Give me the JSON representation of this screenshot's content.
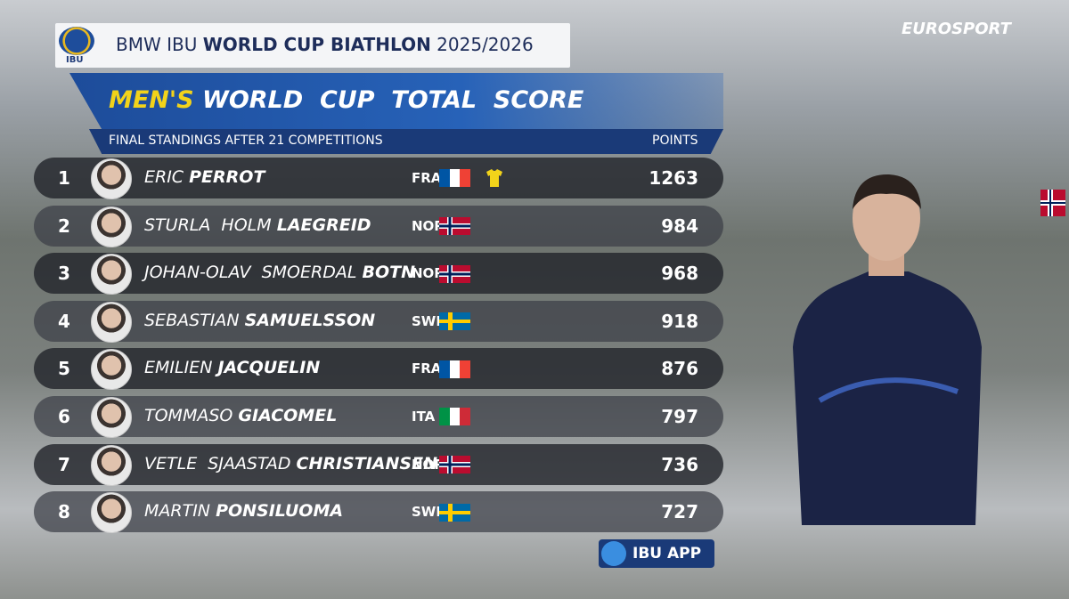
{
  "header": {
    "logo": "IBU",
    "series_prefix": "BMW IBU",
    "series_name": "WORLD CUP BIATHLON",
    "season": "2025/2026",
    "broadcaster": "EUROSPORT",
    "title_gender": "MEN'S",
    "title": "WORLD  CUP  TOTAL  SCORE",
    "subtitle": "FINAL STANDINGS AFTER 21 COMPETITIONS",
    "points_label": "POINTS"
  },
  "table": {
    "rows": [
      {
        "rank": 1,
        "first": "ERIC",
        "last": "PERROT",
        "country": "FRA",
        "points": 1263
      },
      {
        "rank": 2,
        "first": "STURLA  HOLM",
        "last": "LAEGREID",
        "country": "NOR",
        "points": 984
      },
      {
        "rank": 3,
        "first": "JOHAN-OLAV  SMOERDAL",
        "last": "BOTN",
        "country": "NOR",
        "points": 968
      },
      {
        "rank": 4,
        "first": "SEBASTIAN",
        "last": "SAMUELSSON",
        "country": "SWE",
        "points": 918
      },
      {
        "rank": 5,
        "first": "EMILIEN",
        "last": "JACQUELIN",
        "country": "FRA",
        "points": 876
      },
      {
        "rank": 6,
        "first": "TOMMASO",
        "last": "GIACOMEL",
        "country": "ITA",
        "points": 797
      },
      {
        "rank": 7,
        "first": "VETLE  SJAASTAD",
        "last": "CHRISTIANSEN",
        "country": "NOR",
        "points": 736
      },
      {
        "rank": 8,
        "first": "MARTIN",
        "last": "PONSILUOMA",
        "country": "SWE",
        "points": 727
      }
    ]
  },
  "footer": {
    "app": "IBU APP"
  }
}
